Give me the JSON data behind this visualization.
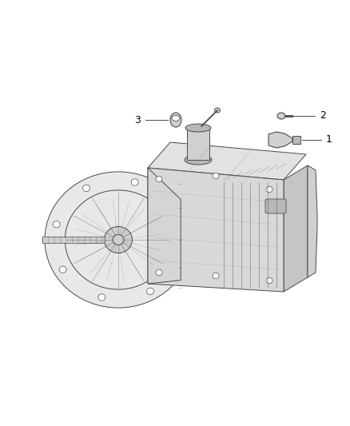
{
  "background_color": "#ffffff",
  "fig_width": 4.38,
  "fig_height": 5.33,
  "dpi": 100,
  "line_color": "#4a4a4a",
  "line_color_light": "#888888",
  "fill_light": "#e8e8e8",
  "fill_mid": "#d0d0d0",
  "fill_dark": "#b8b8b8",
  "fill_darker": "#a0a0a0",
  "label_1": "1",
  "label_2": "2",
  "label_3": "3"
}
